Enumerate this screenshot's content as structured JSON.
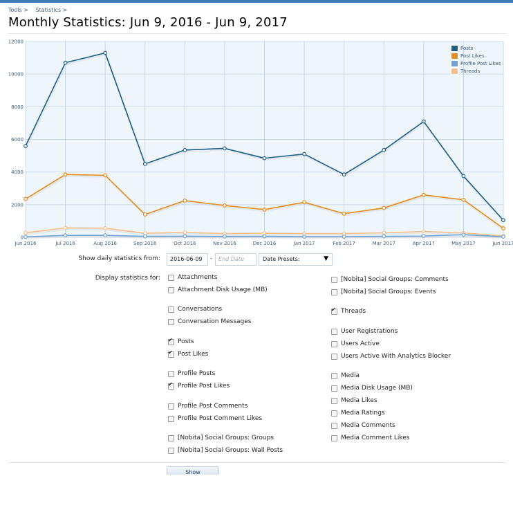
{
  "breadcrumb": {
    "items": [
      "Tools >",
      "Statistics >"
    ]
  },
  "page_title": "Monthly Statistics: Jun 9, 2016 - Jun 9, 2017",
  "chart_data": {
    "type": "line",
    "categories": [
      "Jun 2016",
      "Jul 2016",
      "Aug 2016",
      "Sep 2016",
      "Oct 2016",
      "Nov 2016",
      "Dec 2016",
      "Jan 2017",
      "Feb 2017",
      "Mar 2017",
      "Apr 2017",
      "May 2017",
      "Jun 2017"
    ],
    "yticks": [
      "0",
      "2000",
      "4000",
      "6000",
      "8000",
      "10000",
      "12000"
    ],
    "ylim": [
      0,
      12000
    ],
    "legend_position": "top-right",
    "grid": true,
    "series": [
      {
        "name": "Posts",
        "color": "#1f5f86",
        "values": [
          5600,
          10700,
          11300,
          4500,
          5350,
          5450,
          4850,
          5100,
          3850,
          5350,
          7100,
          3750,
          1050
        ]
      },
      {
        "name": "Post Likes",
        "color": "#e58b19",
        "values": [
          2350,
          3850,
          3800,
          1400,
          2250,
          1950,
          1700,
          2150,
          1450,
          1800,
          2600,
          2300,
          550
        ]
      },
      {
        "name": "Profile Post Likes",
        "color": "#6ea3d4",
        "values": [
          30,
          120,
          120,
          60,
          70,
          50,
          60,
          40,
          40,
          60,
          80,
          160,
          40
        ]
      },
      {
        "name": "Threads",
        "color": "#f6c089",
        "values": [
          280,
          580,
          560,
          250,
          300,
          230,
          250,
          230,
          230,
          280,
          360,
          270,
          90
        ]
      }
    ]
  },
  "form": {
    "daily_label": "Show daily statistics from:",
    "start_date": "2016-06-09",
    "dash": "-",
    "end_date_placeholder": "End Date",
    "presets_label": "Date Presets:",
    "display_label": "Display statistics for:",
    "show_button": "Show"
  },
  "checkboxes_left": [
    {
      "label": "Attachments",
      "checked": false
    },
    {
      "label": "Attachment Disk Usage (MB)",
      "checked": false
    },
    {
      "label": "Conversations",
      "checked": false
    },
    {
      "label": "Conversation Messages",
      "checked": false
    },
    {
      "label": "Posts",
      "checked": true
    },
    {
      "label": "Post Likes",
      "checked": true
    },
    {
      "label": "Profile Posts",
      "checked": false
    },
    {
      "label": "Profile Post Likes",
      "checked": true
    },
    {
      "label": "Profile Post Comments",
      "checked": false
    },
    {
      "label": "Profile Post Comment Likes",
      "checked": false
    },
    {
      "label": "[Nobita] Social Groups: Groups",
      "checked": false
    },
    {
      "label": "[Nobita] Social Groups: Wall Posts",
      "checked": false
    }
  ],
  "checkboxes_right": [
    {
      "label": "[Nobita] Social Groups: Comments",
      "checked": false
    },
    {
      "label": "[Nobita] Social Groups: Events",
      "checked": false
    },
    {
      "label": "Threads",
      "checked": true
    },
    {
      "label": "User Registrations",
      "checked": false
    },
    {
      "label": "Users Active",
      "checked": false
    },
    {
      "label": "Users Active With Analytics Blocker",
      "checked": false
    },
    {
      "label": "Media",
      "checked": false
    },
    {
      "label": "Media Disk Usage (MB)",
      "checked": false
    },
    {
      "label": "Media Likes",
      "checked": false
    },
    {
      "label": "Media Ratings",
      "checked": false
    },
    {
      "label": "Media Comments",
      "checked": false
    },
    {
      "label": "Media Comment Likes",
      "checked": false
    }
  ]
}
